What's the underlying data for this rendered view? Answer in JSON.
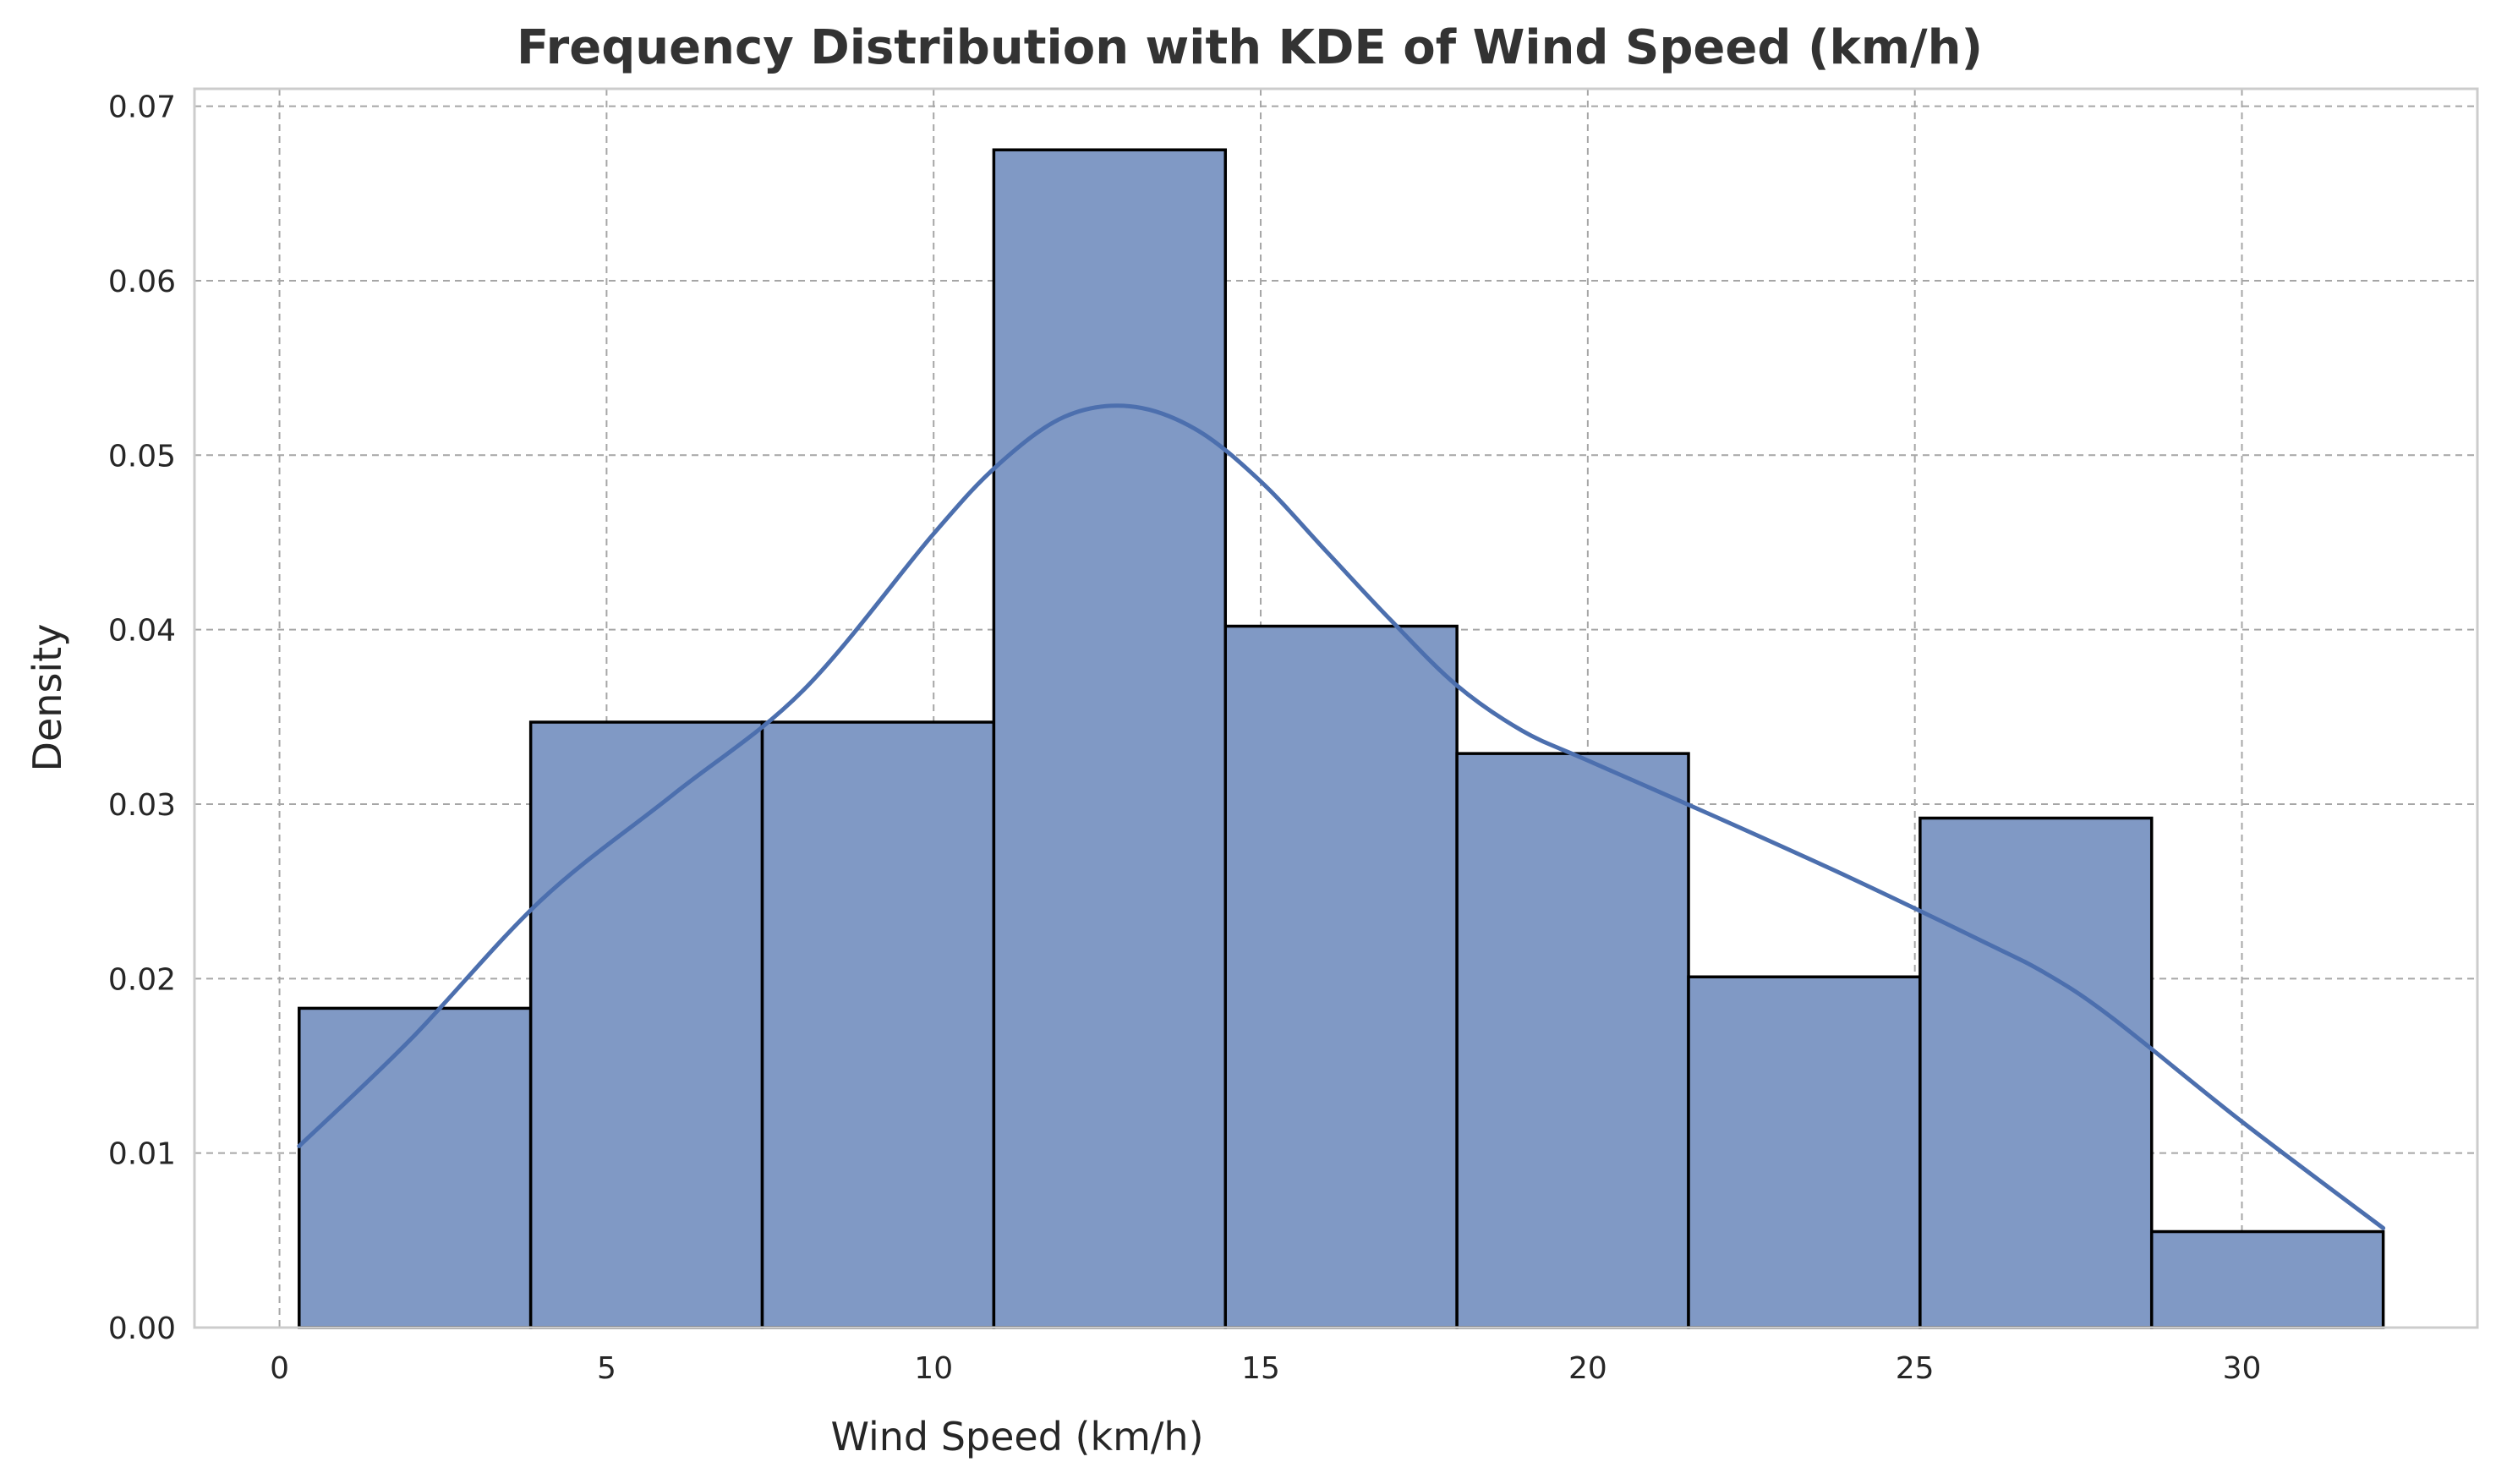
{
  "chart_data": {
    "type": "bar",
    "subtype": "histogram-with-kde",
    "title": "Frequency Distribution with KDE of Wind Speed (km/h)",
    "xlabel": "Wind Speed (km/h)",
    "ylabel": "Density",
    "xlim": [
      -1.3,
      33.6
    ],
    "ylim": [
      0,
      0.071
    ],
    "xticks": [
      0,
      5,
      10,
      15,
      20,
      25,
      30
    ],
    "yticks": [
      0.0,
      0.01,
      0.02,
      0.03,
      0.04,
      0.05,
      0.06,
      0.07
    ],
    "ytick_labels": [
      "0.00",
      "0.01",
      "0.02",
      "0.03",
      "0.04",
      "0.05",
      "0.06",
      "0.07"
    ],
    "grid": true,
    "bins": [
      {
        "x0": 0.3,
        "x1": 3.84,
        "density": 0.0183
      },
      {
        "x0": 3.84,
        "x1": 7.38,
        "density": 0.0347
      },
      {
        "x0": 7.38,
        "x1": 10.92,
        "density": 0.0347
      },
      {
        "x0": 10.92,
        "x1": 14.46,
        "density": 0.0675
      },
      {
        "x0": 14.46,
        "x1": 18.0,
        "density": 0.0402
      },
      {
        "x0": 18.0,
        "x1": 21.54,
        "density": 0.0329
      },
      {
        "x0": 21.54,
        "x1": 25.08,
        "density": 0.0201
      },
      {
        "x0": 25.08,
        "x1": 28.62,
        "density": 0.0292
      },
      {
        "x0": 28.62,
        "x1": 32.16,
        "density": 0.0055
      }
    ],
    "kde": {
      "x": [
        0.3,
        2,
        4,
        6,
        8,
        10,
        11,
        12,
        13,
        14,
        15,
        16,
        17,
        18,
        19,
        20,
        22,
        24,
        26,
        27,
        28,
        30,
        32.16
      ],
      "y": [
        0.0104,
        0.0165,
        0.0245,
        0.0305,
        0.0365,
        0.0455,
        0.0495,
        0.0522,
        0.0528,
        0.0515,
        0.0485,
        0.0445,
        0.0405,
        0.0368,
        0.0342,
        0.0325,
        0.0292,
        0.0258,
        0.0222,
        0.0203,
        0.0178,
        0.0118,
        0.0057
      ]
    },
    "colors": {
      "bar_fill": "#8099c5",
      "bar_edge": "#000000",
      "kde_line": "#4c6fae"
    }
  }
}
